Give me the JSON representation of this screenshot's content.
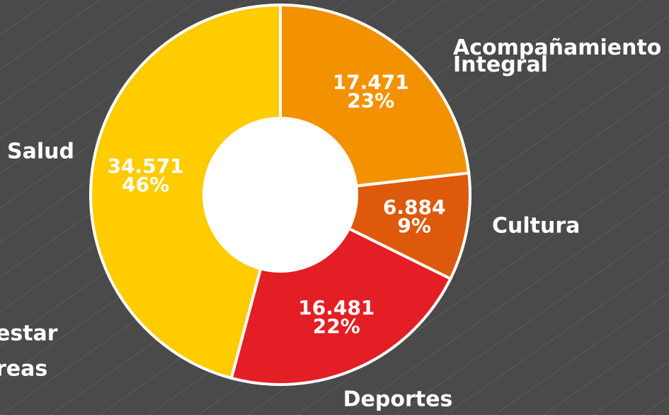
{
  "chart_data": {
    "type": "donut",
    "categories": [
      "Acompañamiento Integral",
      "Cultura",
      "Deportes",
      "Salud"
    ],
    "values": [
      17471,
      6884,
      16481,
      34571
    ],
    "value_labels": [
      "17.471",
      "6.884",
      "16.481",
      "34.571"
    ],
    "percents": [
      23,
      9,
      22,
      46
    ],
    "percent_labels": [
      "23%",
      "9%",
      "22%",
      "46%"
    ],
    "colors": [
      "#f39200",
      "#dd5a0c",
      "#e31e24",
      "#ffcc00"
    ],
    "annotations": [
      "estar",
      "reas"
    ]
  }
}
